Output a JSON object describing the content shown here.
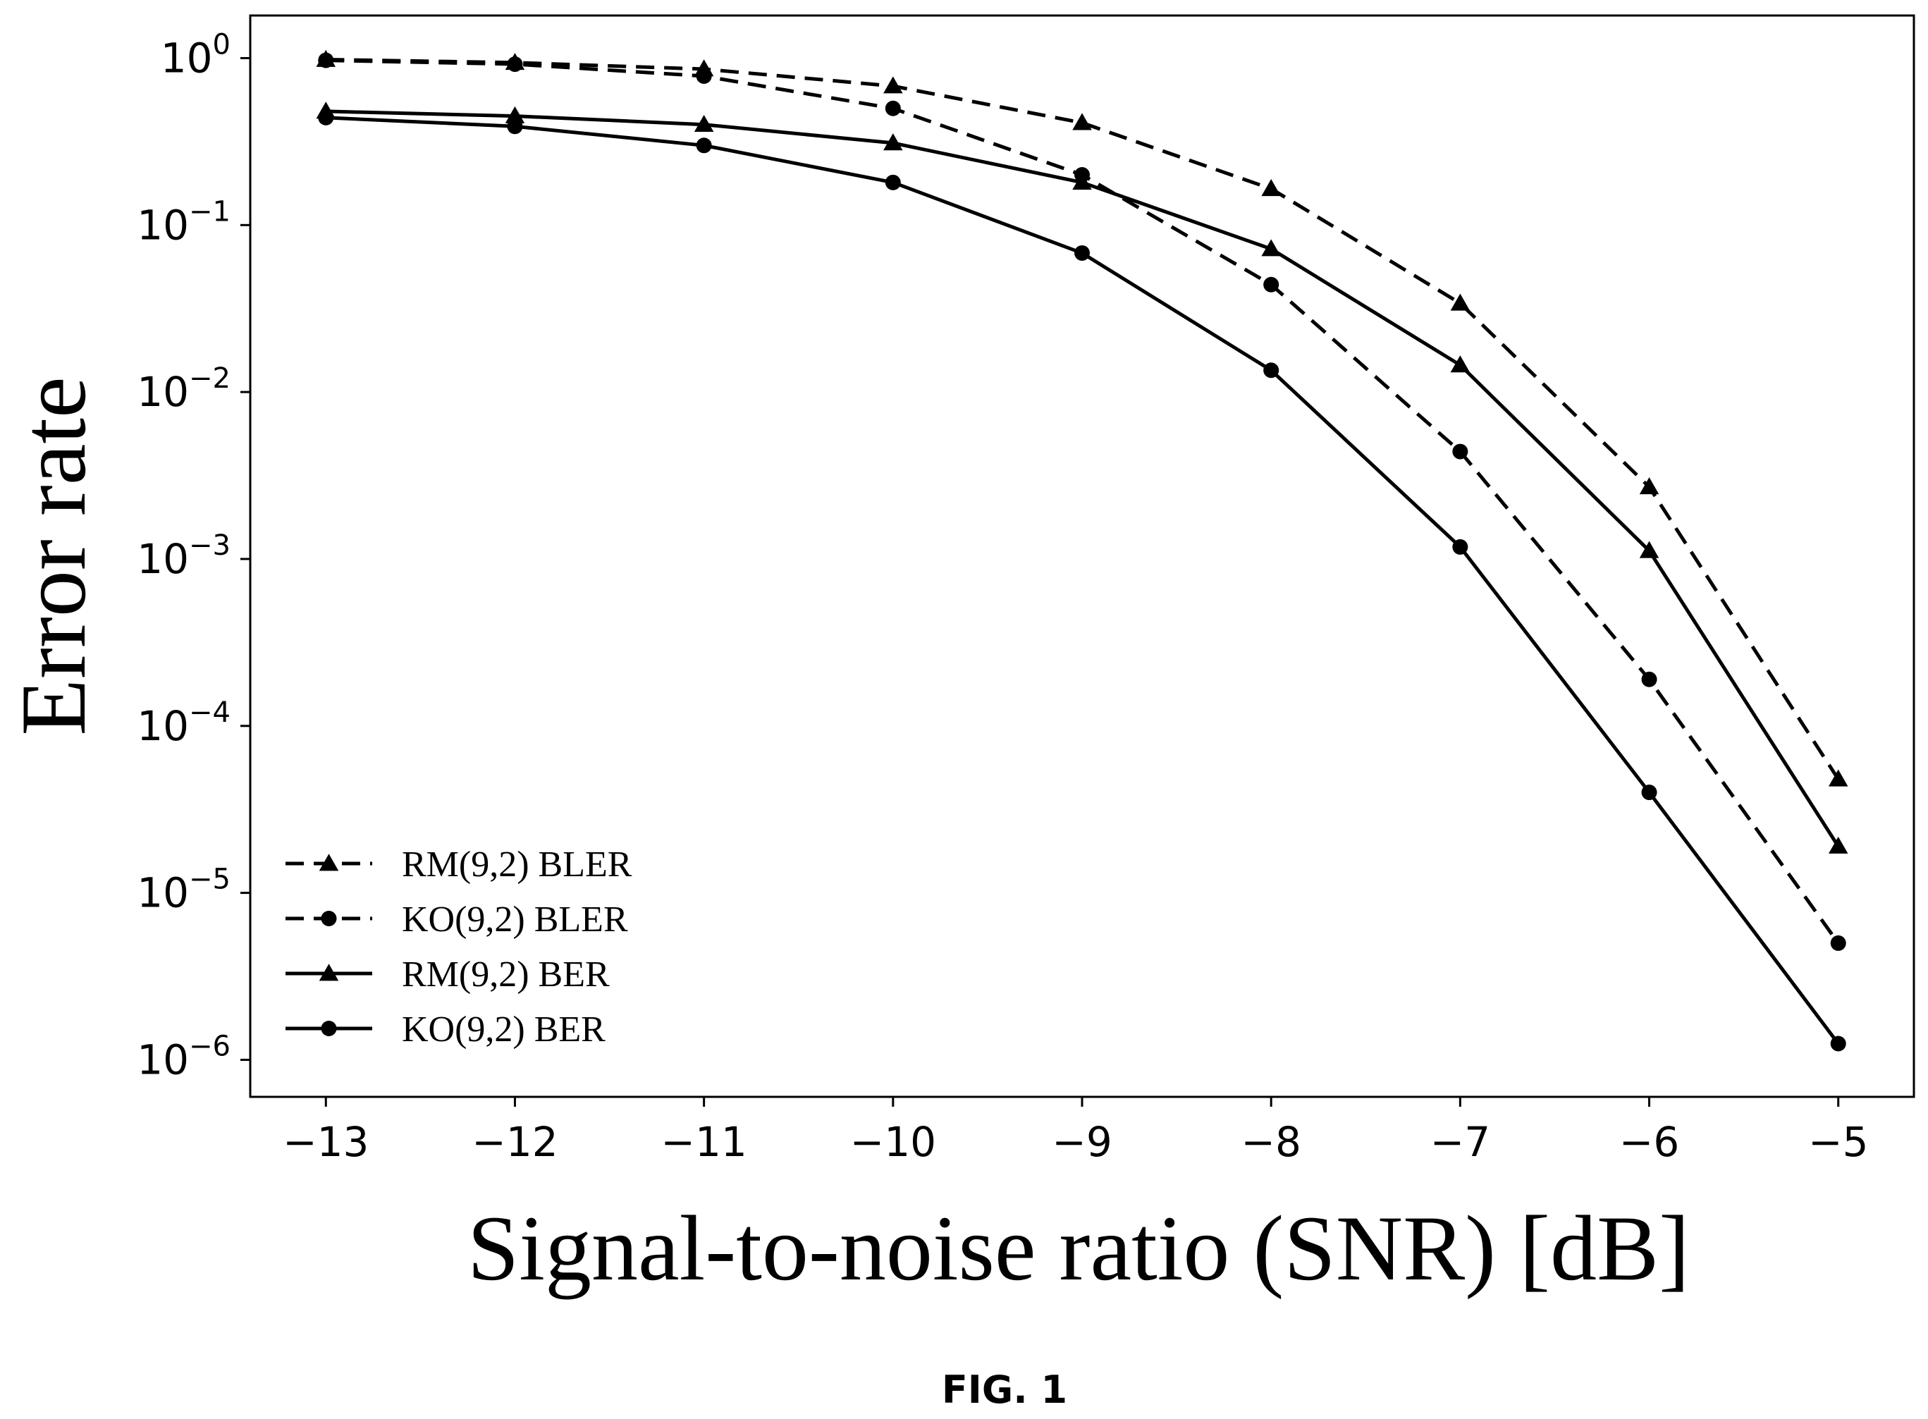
{
  "figure": {
    "caption": "FIG. 1"
  },
  "chart_data": {
    "type": "line",
    "xlabel": "Signal-to-noise ratio (SNR) [dB]",
    "ylabel": "Error rate",
    "x": [
      -13,
      -12,
      -11,
      -10,
      -9,
      -8,
      -7,
      -6,
      -5
    ],
    "xlim": [
      -13.4,
      -4.6
    ],
    "x_tick_labels": [
      "−13",
      "−12",
      "−11",
      "−10",
      "−9",
      "−8",
      "−7",
      "−6",
      "−5"
    ],
    "yscale": "log",
    "ylim": [
      6e-07,
      1.8
    ],
    "y_ticks": [
      1,
      0.1,
      0.01,
      0.001,
      0.0001,
      1e-05,
      1e-06
    ],
    "y_tick_labels": [
      {
        "base": "10",
        "exp": "0"
      },
      {
        "base": "10",
        "exp": "−1"
      },
      {
        "base": "10",
        "exp": "−2"
      },
      {
        "base": "10",
        "exp": "−3"
      },
      {
        "base": "10",
        "exp": "−4"
      },
      {
        "base": "10",
        "exp": "−5"
      },
      {
        "base": "10",
        "exp": "−6"
      }
    ],
    "grid": false,
    "legend_position": "bottom-left",
    "series": [
      {
        "name": "RM(9,2) BLER",
        "line_style": "dashed",
        "marker": "triangle",
        "color": "#000000",
        "values": [
          0.98,
          0.94,
          0.86,
          0.68,
          0.41,
          0.165,
          0.034,
          0.0027,
          4.8e-05
        ]
      },
      {
        "name": "KO(9,2) BLER",
        "line_style": "dashed",
        "marker": "circle",
        "color": "#000000",
        "values": [
          0.97,
          0.92,
          0.78,
          0.5,
          0.2,
          0.044,
          0.0044,
          0.00019,
          5e-06
        ]
      },
      {
        "name": "RM(9,2) BER",
        "line_style": "solid",
        "marker": "triangle",
        "color": "#000000",
        "values": [
          0.48,
          0.45,
          0.4,
          0.31,
          0.18,
          0.072,
          0.0145,
          0.00112,
          1.9e-05
        ]
      },
      {
        "name": "KO(9,2) BER",
        "line_style": "solid",
        "marker": "circle",
        "color": "#000000",
        "values": [
          0.44,
          0.39,
          0.3,
          0.18,
          0.068,
          0.0135,
          0.00118,
          4e-05,
          1.25e-06
        ]
      }
    ]
  }
}
